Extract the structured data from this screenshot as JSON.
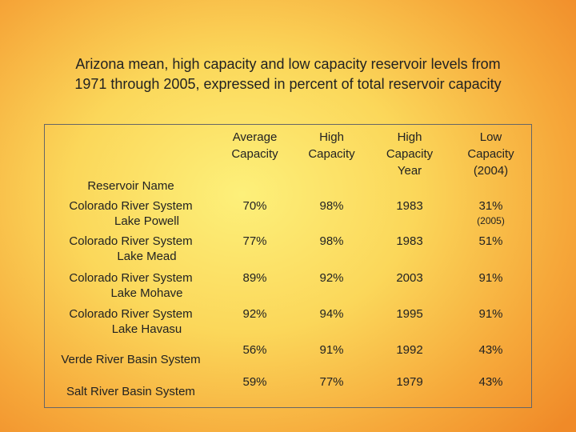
{
  "title": {
    "lines": [
      "Arizona mean, high capacity and low capacity reservoir levels from",
      "1971 through 2005, expressed in percent of total reservoir capacity"
    ]
  },
  "table": {
    "headers": [
      "Reservoir Name",
      "Average Capacity",
      "High Capacity",
      "High Capacity Year",
      "Low Capacity (2004)"
    ],
    "rows": [
      {
        "name": [
          "Colorado River System",
          "Lake Powell"
        ],
        "cells": [
          "70%",
          "98%",
          "1983",
          "31%"
        ],
        "note": "(2005)"
      },
      {
        "name": [
          "Colorado River System",
          "Lake Mead"
        ],
        "cells": [
          "77%",
          "98%",
          "1983",
          "51%"
        ]
      },
      {
        "name": [
          "Colorado River System",
          "Lake Mohave"
        ],
        "cells": [
          "89%",
          "92%",
          "2003",
          "91%"
        ]
      },
      {
        "name": [
          "Colorado River System",
          "Lake Havasu"
        ],
        "cells": [
          "92%",
          "94%",
          "1995",
          "91%"
        ]
      },
      {
        "name": [
          "Verde River Basin System"
        ],
        "cells": [
          "56%",
          "91%",
          "1992",
          "43%"
        ]
      },
      {
        "name": [
          "Salt River Basin System"
        ],
        "cells": [
          "59%",
          "77%",
          "1979",
          "43%"
        ]
      }
    ]
  }
}
